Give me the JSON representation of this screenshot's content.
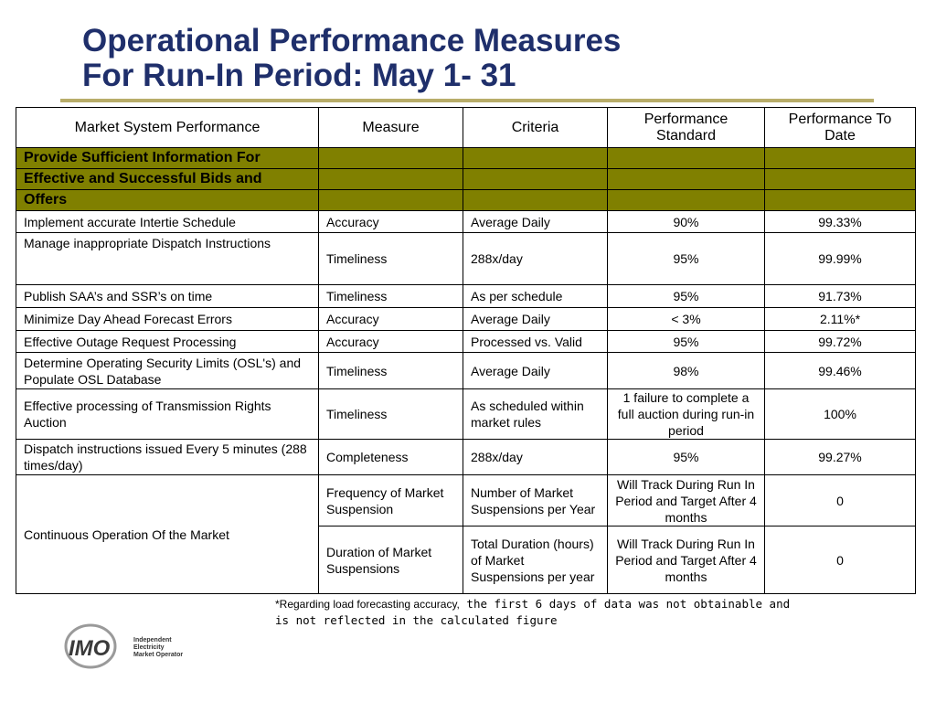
{
  "title": {
    "line1": "Operational Performance Measures",
    "line2": "For Run-In Period: May 1- 31"
  },
  "table": {
    "headers": {
      "market_system_performance": "Market System Performance",
      "measure": "Measure",
      "criteria": "Criteria",
      "performance_standard": "Performance Standard",
      "performance_to_date": "Performance To Date"
    },
    "section": {
      "lines": [
        "Provide Sufficient Information For",
        "Effective and Successful Bids and",
        "Offers"
      ],
      "color": "#808000"
    },
    "rows": [
      {
        "performance": "Implement  accurate Intertie Schedule",
        "measure": "Accuracy",
        "criteria": "Average Daily",
        "standard": "90%",
        "to_date": "99.33%"
      },
      {
        "performance": "Manage inappropriate Dispatch Instructions",
        "measure": "Timeliness",
        "criteria": "288x/day",
        "standard": "95%",
        "to_date": "99.99%"
      },
      {
        "performance": "Publish SAA’s and SSR’s on time",
        "measure": "Timeliness",
        "criteria": "As per schedule",
        "standard": "95%",
        "to_date": "91.73%"
      },
      {
        "performance": "Minimize Day Ahead Forecast Errors",
        "measure": "Accuracy",
        "criteria": "Average Daily",
        "standard": "< 3%",
        "to_date": "2.11%*"
      },
      {
        "performance": "Effective Outage Request Processing",
        "measure": "Accuracy",
        "criteria": "Processed vs. Valid",
        "standard": "95%",
        "to_date": "99.72%"
      },
      {
        "performance": "Determine Operating Security Limits (OSL's) and Populate OSL Database",
        "measure": "Timeliness",
        "criteria": "Average Daily",
        "standard": "98%",
        "to_date": "99.46%"
      },
      {
        "performance": "Effective processing of Transmission Rights Auction",
        "measure": "Timeliness",
        "criteria": "As scheduled within market rules",
        "standard": "1 failure to complete a full auction during run-in period",
        "to_date": "100%"
      },
      {
        "performance": "Dispatch instructions issued Every 5 minutes (288 times/day)",
        "measure": "Completeness",
        "criteria": "288x/day",
        "standard": "95%",
        "to_date": "99.27%"
      }
    ],
    "continuous": {
      "performance": "Continuous Operation Of the Market",
      "sub": [
        {
          "measure": "Frequency of Market Suspension",
          "criteria": "Number of Market Suspensions per Year",
          "standard": "Will Track During Run In Period and Target After 4 months",
          "to_date": "0"
        },
        {
          "measure": "Duration of Market Suspensions",
          "criteria": "Total Duration (hours) of Market Suspensions per year",
          "standard": "Will Track During Run In Period and Target After 4 months",
          "to_date": "0"
        }
      ]
    }
  },
  "footnote": {
    "part1": "*Regarding  load forecasting accuracy,",
    "part2": " the first 6 days of data was not obtainable and",
    "part3": "is not reflected in the calculated figure"
  },
  "logo": {
    "mark": "IMO",
    "line1": "Independent",
    "line2": "Electricity",
    "line3": "Market Operator",
    "icon": "imo-logo-icon"
  },
  "colors": {
    "title": "#1f2f6b",
    "rule": "#b8ad6a",
    "section": "#808000"
  }
}
